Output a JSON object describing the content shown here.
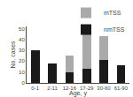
{
  "chart_data": {
    "type": "bar",
    "stacked": true,
    "categories": [
      "0-1",
      "2-11",
      "12-16",
      "17-29",
      "30-60",
      "61-90"
    ],
    "series": [
      {
        "name": "nmTSS",
        "color": "#1a1a1a",
        "values": [
          30,
          18,
          10,
          13,
          21,
          16
        ]
      },
      {
        "name": "mTSS",
        "color": "#aaaaaa",
        "values": [
          0,
          0,
          15,
          35,
          22,
          0
        ]
      }
    ],
    "xlabel": "Age, y",
    "ylabel": "No. cases",
    "ylim": [
      0,
      52
    ],
    "yticks": [
      0,
      10,
      20,
      30,
      40,
      50
    ],
    "grid": false,
    "legend": "upper right"
  }
}
